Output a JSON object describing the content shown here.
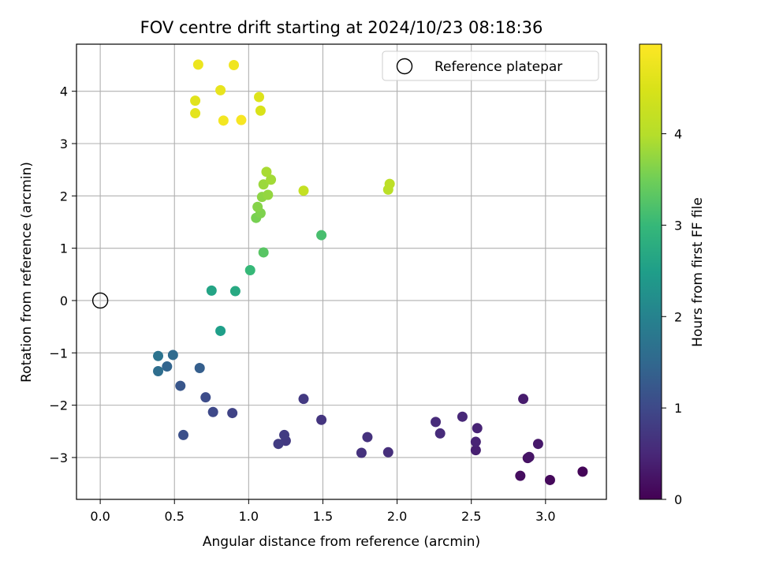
{
  "chart_data": {
    "type": "scatter",
    "title": "FOV centre drift starting at 2024/10/23 08:18:36",
    "xlabel": "Angular distance from reference (arcmin)",
    "ylabel": "Rotation from reference (arcmin)",
    "xlim": [
      -0.16,
      3.41
    ],
    "ylim": [
      -3.8,
      4.9
    ],
    "x_ticks": [
      0.0,
      0.5,
      1.0,
      1.5,
      2.0,
      2.5,
      3.0
    ],
    "x_tick_labels": [
      "0.0",
      "0.5",
      "1.0",
      "1.5",
      "2.0",
      "2.5",
      "3.0"
    ],
    "y_ticks": [
      -3,
      -2,
      -1,
      0,
      1,
      2,
      3,
      4
    ],
    "y_tick_labels": [
      "−3",
      "−2",
      "−1",
      "0",
      "1",
      "2",
      "3",
      "4"
    ],
    "grid": true,
    "colormap": "viridis",
    "colorbar": {
      "label": "Hours from first FF file",
      "range": [
        0,
        4.98
      ],
      "ticks": [
        0,
        1,
        2,
        3,
        4
      ],
      "tick_labels": [
        "0",
        "1",
        "2",
        "3",
        "4"
      ]
    },
    "legend": {
      "position": "top-right",
      "entries": [
        {
          "label": "Reference platepar",
          "marker": "hollow-circle",
          "x": 0.0,
          "y": 0.0
        }
      ]
    },
    "points": [
      {
        "x": 3.25,
        "y": -3.27,
        "hours": 0.05
      },
      {
        "x": 3.03,
        "y": -3.43,
        "hours": 0.1
      },
      {
        "x": 2.83,
        "y": -3.35,
        "hours": 0.15
      },
      {
        "x": 2.88,
        "y": -3.01,
        "hours": 0.2
      },
      {
        "x": 2.89,
        "y": -2.99,
        "hours": 0.25
      },
      {
        "x": 2.95,
        "y": -2.74,
        "hours": 0.3
      },
      {
        "x": 2.85,
        "y": -1.88,
        "hours": 0.35
      },
      {
        "x": 2.53,
        "y": -2.86,
        "hours": 0.4
      },
      {
        "x": 2.53,
        "y": -2.7,
        "hours": 0.45
      },
      {
        "x": 2.54,
        "y": -2.44,
        "hours": 0.45
      },
      {
        "x": 2.44,
        "y": -2.22,
        "hours": 0.5
      },
      {
        "x": 2.29,
        "y": -2.54,
        "hours": 0.55
      },
      {
        "x": 2.26,
        "y": -2.32,
        "hours": 0.55
      },
      {
        "x": 1.94,
        "y": -2.9,
        "hours": 0.6
      },
      {
        "x": 1.76,
        "y": -2.91,
        "hours": 0.65
      },
      {
        "x": 1.8,
        "y": -2.61,
        "hours": 0.65
      },
      {
        "x": 1.49,
        "y": -2.28,
        "hours": 0.7
      },
      {
        "x": 1.37,
        "y": -1.88,
        "hours": 0.75
      },
      {
        "x": 1.25,
        "y": -2.68,
        "hours": 0.75
      },
      {
        "x": 1.24,
        "y": -2.57,
        "hours": 0.8
      },
      {
        "x": 1.2,
        "y": -2.74,
        "hours": 0.8
      },
      {
        "x": 0.89,
        "y": -2.15,
        "hours": 0.9
      },
      {
        "x": 0.76,
        "y": -2.13,
        "hours": 1.0
      },
      {
        "x": 0.71,
        "y": -1.85,
        "hours": 1.05
      },
      {
        "x": 0.56,
        "y": -2.57,
        "hours": 1.1
      },
      {
        "x": 0.54,
        "y": -1.63,
        "hours": 1.2
      },
      {
        "x": 0.67,
        "y": -1.29,
        "hours": 1.35
      },
      {
        "x": 0.45,
        "y": -1.26,
        "hours": 1.45
      },
      {
        "x": 0.49,
        "y": -1.04,
        "hours": 1.55
      },
      {
        "x": 0.39,
        "y": -1.35,
        "hours": 1.6
      },
      {
        "x": 0.39,
        "y": -1.06,
        "hours": 1.7
      },
      {
        "x": 0.81,
        "y": -0.58,
        "hours": 2.5
      },
      {
        "x": 0.75,
        "y": 0.19,
        "hours": 2.6
      },
      {
        "x": 0.91,
        "y": 0.18,
        "hours": 2.7
      },
      {
        "x": 1.01,
        "y": 0.58,
        "hours": 3.0
      },
      {
        "x": 1.49,
        "y": 1.25,
        "hours": 3.15
      },
      {
        "x": 1.1,
        "y": 0.92,
        "hours": 3.3
      },
      {
        "x": 1.05,
        "y": 1.58,
        "hours": 3.55
      },
      {
        "x": 1.08,
        "y": 1.67,
        "hours": 3.6
      },
      {
        "x": 1.06,
        "y": 1.79,
        "hours": 3.65
      },
      {
        "x": 1.09,
        "y": 1.98,
        "hours": 3.7
      },
      {
        "x": 1.13,
        "y": 2.02,
        "hours": 3.75
      },
      {
        "x": 1.1,
        "y": 2.22,
        "hours": 3.8
      },
      {
        "x": 1.15,
        "y": 2.31,
        "hours": 3.85
      },
      {
        "x": 1.12,
        "y": 2.46,
        "hours": 3.9
      },
      {
        "x": 1.94,
        "y": 2.12,
        "hours": 4.05
      },
      {
        "x": 1.95,
        "y": 2.23,
        "hours": 4.1
      },
      {
        "x": 1.37,
        "y": 2.1,
        "hours": 4.2
      },
      {
        "x": 1.08,
        "y": 3.63,
        "hours": 4.5
      },
      {
        "x": 1.07,
        "y": 3.89,
        "hours": 4.55
      },
      {
        "x": 0.64,
        "y": 3.82,
        "hours": 4.6
      },
      {
        "x": 0.64,
        "y": 3.58,
        "hours": 4.65
      },
      {
        "x": 0.81,
        "y": 4.02,
        "hours": 4.7
      },
      {
        "x": 0.66,
        "y": 4.51,
        "hours": 4.75
      },
      {
        "x": 0.9,
        "y": 4.5,
        "hours": 4.8
      },
      {
        "x": 0.83,
        "y": 3.44,
        "hours": 4.85
      },
      {
        "x": 0.95,
        "y": 3.45,
        "hours": 4.9
      }
    ]
  }
}
